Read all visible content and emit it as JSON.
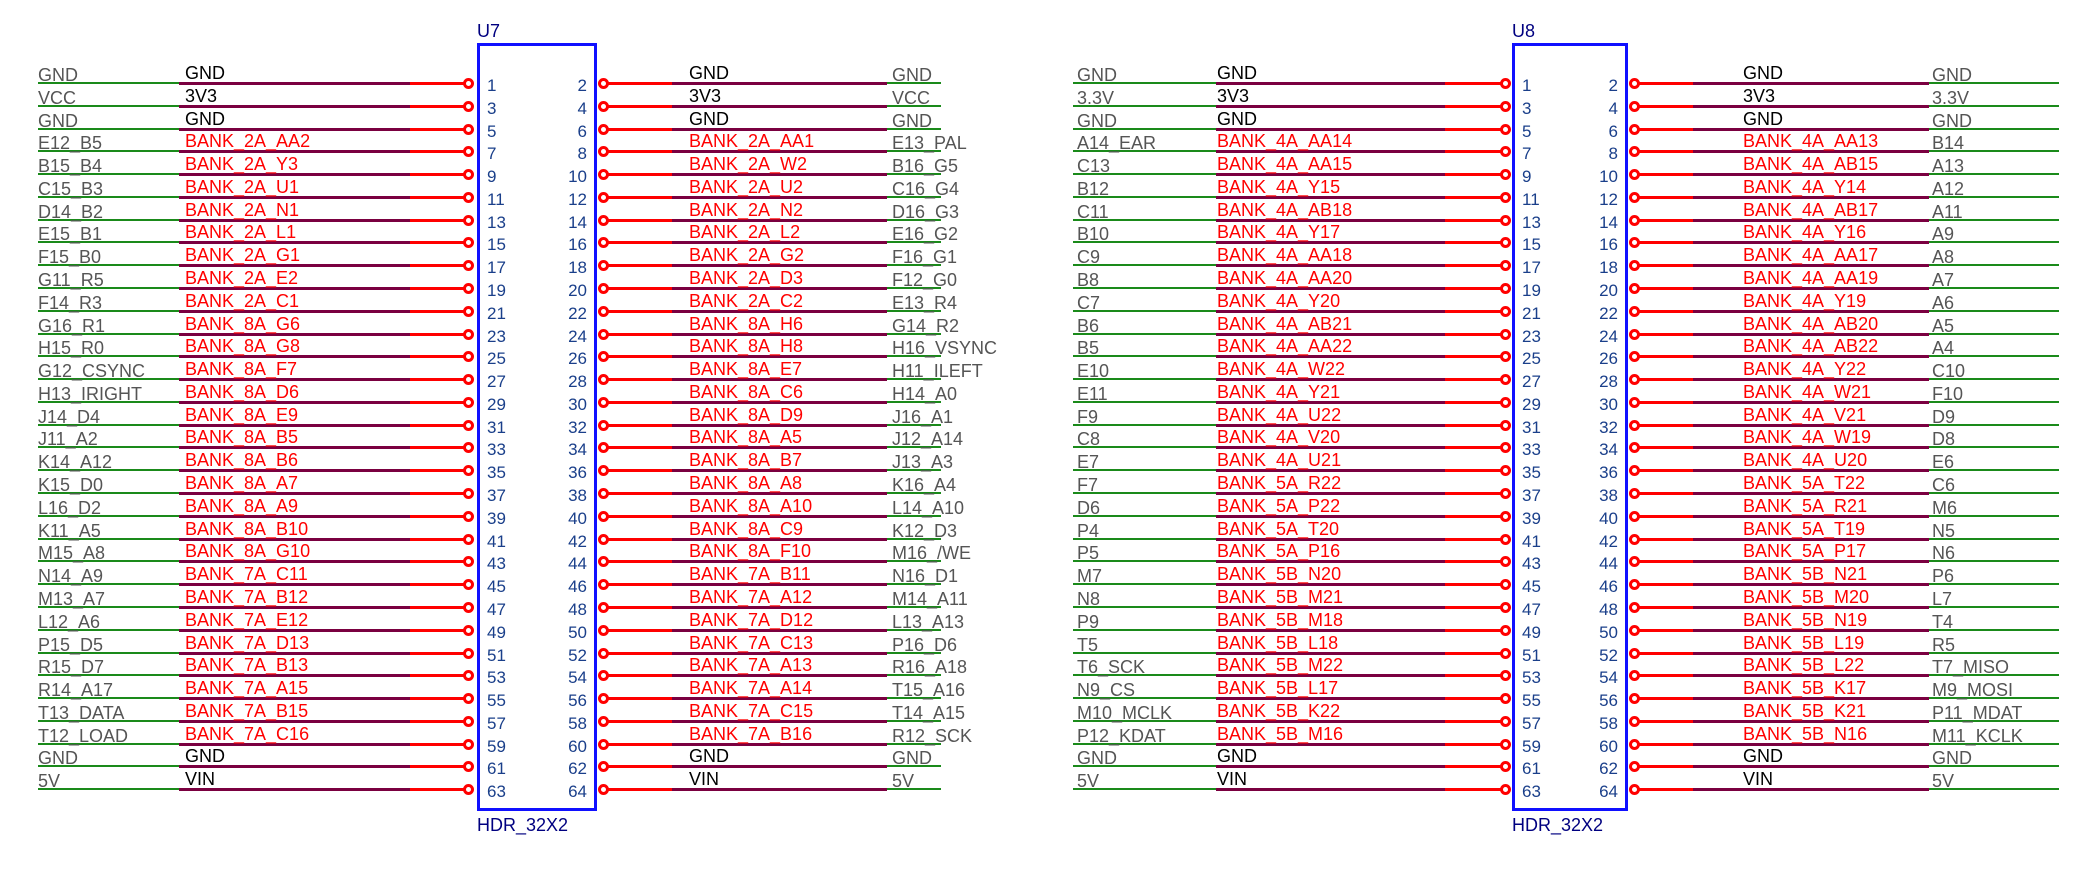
{
  "headers": [
    {
      "ref": "U7",
      "part": "HDR_32X2",
      "left_labels": [
        "GND",
        "VCC",
        "GND",
        "E12_B5",
        "B15_B4",
        "C15_B3",
        "D14_B2",
        "E15_B1",
        "F15_B0",
        "G11_R5",
        "F14_R3",
        "G16_R1",
        "H15_R0",
        "G12_CSYNC",
        "H13_IRIGHT",
        "J14_D4",
        "J11_A2",
        "K14_A12",
        "K15_D0",
        "L16_D2",
        "K11_A5",
        "M15_A8",
        "N14_A9",
        "M13_A7",
        "L12_A6",
        "P15_D5",
        "R15_D7",
        "R14_A17",
        "T13_DATA",
        "T12_LOAD",
        "GND",
        "5V"
      ],
      "left_nets": [
        "GND",
        "3V3",
        "GND",
        "BANK_2A_AA2",
        "BANK_2A_Y3",
        "BANK_2A_U1",
        "BANK_2A_N1",
        "BANK_2A_L1",
        "BANK_2A_G1",
        "BANK_2A_E2",
        "BANK_2A_C1",
        "BANK_8A_G6",
        "BANK_8A_G8",
        "BANK_8A_F7",
        "BANK_8A_D6",
        "BANK_8A_E9",
        "BANK_8A_B5",
        "BANK_8A_B6",
        "BANK_8A_A7",
        "BANK_8A_A9",
        "BANK_8A_B10",
        "BANK_8A_G10",
        "BANK_7A_C11",
        "BANK_7A_B12",
        "BANK_7A_E12",
        "BANK_7A_D13",
        "BANK_7A_B13",
        "BANK_7A_A15",
        "BANK_7A_B15",
        "BANK_7A_C16",
        "GND",
        "VIN"
      ],
      "right_nets": [
        "GND",
        "3V3",
        "GND",
        "BANK_2A_AA1",
        "BANK_2A_W2",
        "BANK_2A_U2",
        "BANK_2A_N2",
        "BANK_2A_L2",
        "BANK_2A_G2",
        "BANK_2A_D3",
        "BANK_2A_C2",
        "BANK_8A_H6",
        "BANK_8A_H8",
        "BANK_8A_E7",
        "BANK_8A_C6",
        "BANK_8A_D9",
        "BANK_8A_A5",
        "BANK_8A_B7",
        "BANK_8A_A8",
        "BANK_8A_A10",
        "BANK_8A_C9",
        "BANK_8A_F10",
        "BANK_7A_B11",
        "BANK_7A_A12",
        "BANK_7A_D12",
        "BANK_7A_C13",
        "BANK_7A_A13",
        "BANK_7A_A14",
        "BANK_7A_C15",
        "BANK_7A_B16",
        "GND",
        "VIN"
      ],
      "right_labels": [
        "GND",
        "VCC",
        "GND",
        "E13_PAL",
        "B16_G5",
        "C16_G4",
        "D16_G3",
        "E16_G2",
        "F16_G1",
        "F12_G0",
        "E13_R4",
        "G14_R2",
        "H16_VSYNC",
        "H11_ILEFT",
        "H14_A0",
        "J16_A1",
        "J12_A14",
        "J13_A3",
        "K16_A4",
        "L14_A10",
        "K12_D3",
        "M16_/WE",
        "N16_D1",
        "M14_A11",
        "L13_A13",
        "P16_D6",
        "R16_A18",
        "T15_A16",
        "T14_A15",
        "R12_SCK",
        "GND",
        "5V"
      ]
    },
    {
      "ref": "U8",
      "part": "HDR_32X2",
      "left_labels": [
        "GND",
        "3.3V",
        "GND",
        "A14_EAR",
        "C13",
        "B12",
        "C11",
        "B10",
        "C9",
        "B8",
        "C7",
        "B6",
        "B5",
        "E10",
        "E11",
        "F9",
        "C8",
        "E7",
        "F7",
        "D6",
        "P4",
        "P5",
        "M7",
        "N8",
        "P9",
        "T5",
        "T6_SCK",
        "N9_CS",
        "M10_MCLK",
        "P12_KDAT",
        "GND",
        "5V"
      ],
      "left_nets": [
        "GND",
        "3V3",
        "GND",
        "BANK_4A_AA14",
        "BANK_4A_AA15",
        "BANK_4A_Y15",
        "BANK_4A_AB18",
        "BANK_4A_Y17",
        "BANK_4A_AA18",
        "BANK_4A_AA20",
        "BANK_4A_Y20",
        "BANK_4A_AB21",
        "BANK_4A_AA22",
        "BANK_4A_W22",
        "BANK_4A_Y21",
        "BANK_4A_U22",
        "BANK_4A_V20",
        "BANK_4A_U21",
        "BANK_5A_R22",
        "BANK_5A_P22",
        "BANK_5A_T20",
        "BANK_5A_P16",
        "BANK_5B_N20",
        "BANK_5B_M21",
        "BANK_5B_M18",
        "BANK_5B_L18",
        "BANK_5B_M22",
        "BANK_5B_L17",
        "BANK_5B_K22",
        "BANK_5B_M16",
        "GND",
        "VIN"
      ],
      "right_nets": [
        "GND",
        "3V3",
        "GND",
        "BANK_4A_AA13",
        "BANK_4A_AB15",
        "BANK_4A_Y14",
        "BANK_4A_AB17",
        "BANK_4A_Y16",
        "BANK_4A_AA17",
        "BANK_4A_AA19",
        "BANK_4A_Y19",
        "BANK_4A_AB20",
        "BANK_4A_AB22",
        "BANK_4A_Y22",
        "BANK_4A_W21",
        "BANK_4A_V21",
        "BANK_4A_W19",
        "BANK_4A_U20",
        "BANK_5A_T22",
        "BANK_5A_R21",
        "BANK_5A_T19",
        "BANK_5A_P17",
        "BANK_5B_N21",
        "BANK_5B_M20",
        "BANK_5B_N19",
        "BANK_5B_L19",
        "BANK_5B_L22",
        "BANK_5B_K17",
        "BANK_5B_K21",
        "BANK_5B_N16",
        "GND",
        "VIN"
      ],
      "right_labels": [
        "GND",
        "3.3V",
        "GND",
        "B14",
        "A13",
        "A12",
        "A11",
        "A9",
        "A8",
        "A7",
        "A6",
        "A5",
        "A4",
        "C10",
        "F10",
        "D9",
        "D8",
        "E6",
        "C6",
        "M6",
        "N5",
        "N6",
        "P6",
        "L7",
        "T4",
        "R5",
        "T7_MISO",
        "M9_MOSI",
        "P11_MDAT",
        "M11_KCLK",
        "GND",
        "5V"
      ]
    }
  ],
  "pin_numbers": [
    "1",
    "2",
    "3",
    "4",
    "5",
    "6",
    "7",
    "8",
    "9",
    "10",
    "11",
    "12",
    "13",
    "14",
    "15",
    "16",
    "17",
    "18",
    "19",
    "20",
    "21",
    "22",
    "23",
    "24",
    "25",
    "26",
    "27",
    "28",
    "29",
    "30",
    "31",
    "32",
    "33",
    "34",
    "35",
    "36",
    "37",
    "38",
    "39",
    "40",
    "41",
    "42",
    "43",
    "44",
    "45",
    "46",
    "47",
    "48",
    "49",
    "50",
    "51",
    "52",
    "53",
    "54",
    "55",
    "56",
    "57",
    "58",
    "59",
    "60",
    "61",
    "62",
    "63",
    "64"
  ],
  "colors": {
    "wire": "#1a8a1a",
    "net": "#7a0040",
    "pin": "#ff0000",
    "body": "#1010ff",
    "power_nets": [
      "GND",
      "3V3",
      "VIN"
    ]
  }
}
